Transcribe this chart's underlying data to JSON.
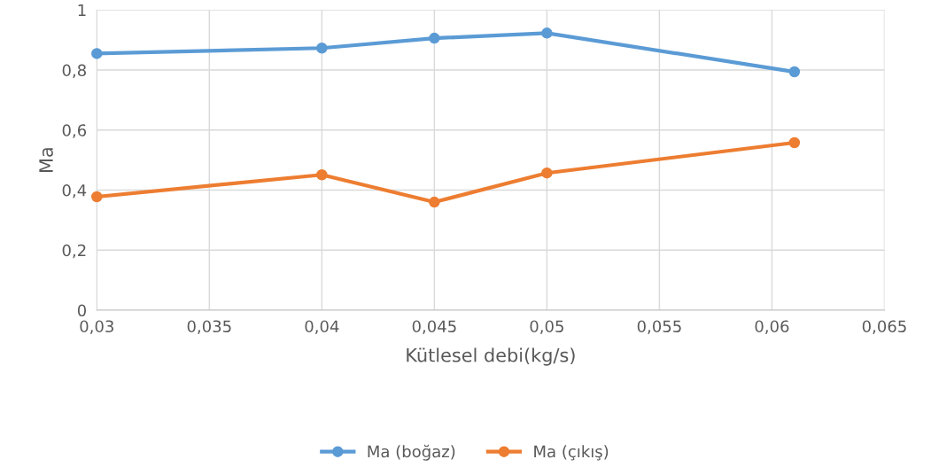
{
  "chart_data": {
    "type": "line",
    "xlabel": "Kütlesel debi(kg/s)",
    "ylabel": "Ma",
    "x": [
      0.03,
      0.04,
      0.045,
      0.05,
      0.061
    ],
    "series": [
      {
        "name": "Ma (boğaz)",
        "color": "#5b9bd5",
        "values": [
          0.855,
          0.873,
          0.906,
          0.923,
          0.794
        ]
      },
      {
        "name": "Ma (çıkış)",
        "color": "#ed7d31",
        "values": [
          0.378,
          0.451,
          0.36,
          0.457,
          0.558
        ]
      }
    ],
    "xlim": [
      0.03,
      0.065
    ],
    "xticks": [
      {
        "value": 0.03,
        "label": "0,03"
      },
      {
        "value": 0.035,
        "label": "0,035"
      },
      {
        "value": 0.04,
        "label": "0,04"
      },
      {
        "value": 0.045,
        "label": "0,045"
      },
      {
        "value": 0.05,
        "label": "0,05"
      },
      {
        "value": 0.055,
        "label": "0,055"
      },
      {
        "value": 0.06,
        "label": "0,06"
      },
      {
        "value": 0.065,
        "label": "0,065"
      }
    ],
    "ylim": [
      0,
      1
    ],
    "yticks": [
      0,
      {
        "value": 0.2,
        "label": "0,2"
      },
      {
        "value": 0.4,
        "label": "0,4"
      },
      {
        "value": 0.6,
        "label": "0,6"
      },
      {
        "value": 0.8,
        "label": "0,8"
      },
      1
    ],
    "grid": true,
    "legend": "bottom",
    "marker": "circle",
    "line_style": "solid"
  }
}
